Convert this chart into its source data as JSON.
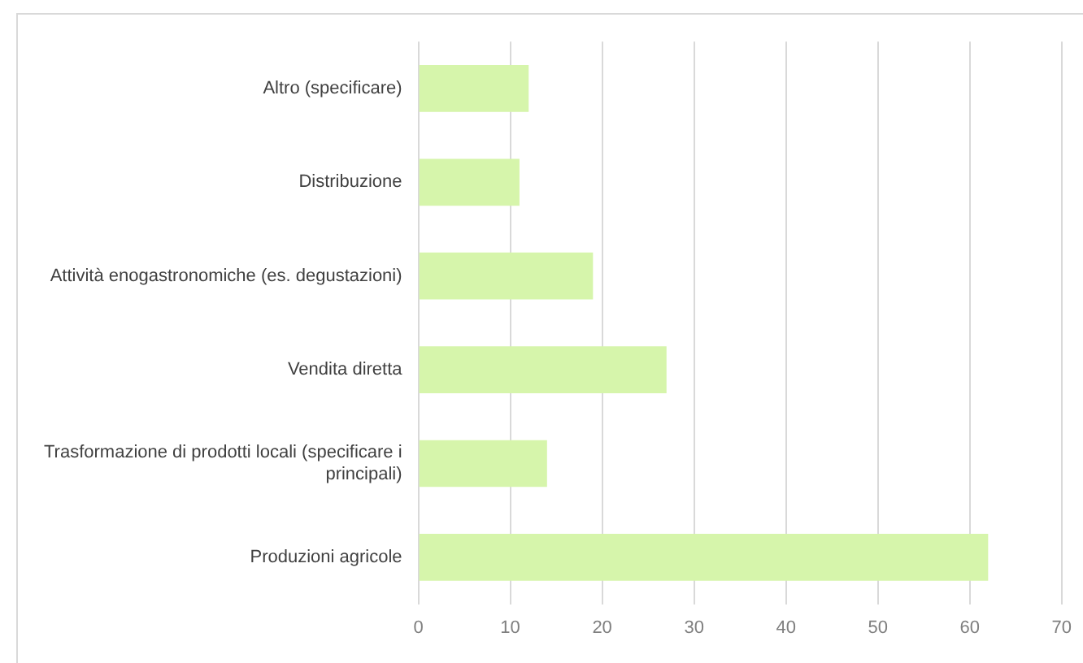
{
  "chart_data": {
    "type": "bar",
    "orientation": "horizontal",
    "categories": [
      "Altro (specificare)",
      "Distribuzione",
      "Attività enogastronomiche (es. degustazioni)",
      "Vendita diretta",
      "Trasformazione di prodotti locali (specificare i principali)",
      "Produzioni agricole"
    ],
    "values": [
      12,
      11,
      19,
      27,
      14,
      62
    ],
    "color": "#d6f5ab",
    "xlim": [
      0,
      70
    ],
    "xticks": [
      0,
      10,
      20,
      30,
      40,
      50,
      60,
      70
    ],
    "grid": "x",
    "legend": false
  }
}
